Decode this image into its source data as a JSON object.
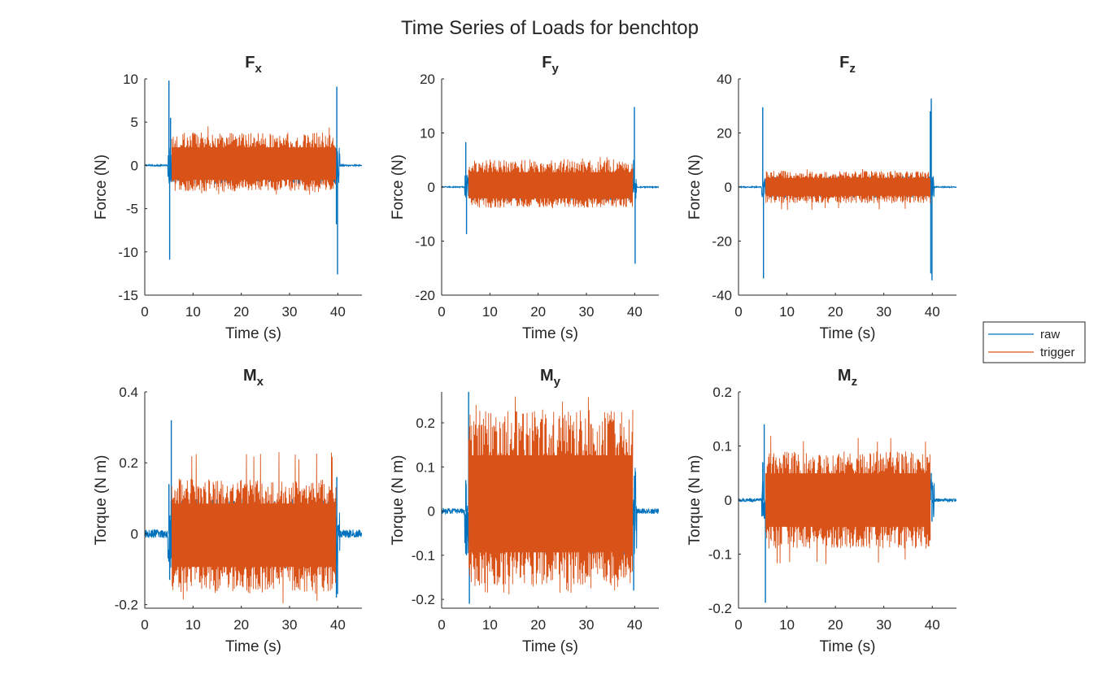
{
  "figure": {
    "title": "Time Series of Loads for benchtop"
  },
  "colors": {
    "raw": "#0072BD",
    "trigger": "#D95319",
    "axis": "#262626",
    "background": "#ffffff"
  },
  "chart_data": [
    {
      "type": "line",
      "title_main": "F",
      "title_sub": "x",
      "xlabel": "Time (s)",
      "ylabel": "Force (N)",
      "xlim": [
        0,
        45
      ],
      "ylim": [
        -15,
        10
      ],
      "xticks": [
        0,
        10,
        20,
        30,
        40
      ],
      "yticks": [
        -15,
        -10,
        -5,
        0,
        5,
        10
      ],
      "series": [
        {
          "name": "raw",
          "quiet_amp": 0.08,
          "active_amp": 2.2,
          "spikes": [
            [
              5.0,
              9.8
            ],
            [
              5.15,
              -10.9
            ],
            [
              5.35,
              5.5
            ],
            [
              39.8,
              9.1
            ],
            [
              39.95,
              -12.6
            ],
            [
              39.7,
              -6.8
            ]
          ]
        },
        {
          "name": "trigger",
          "t_start": 5.6,
          "t_end": 39.6,
          "upper": 3.8,
          "lower": -3.0,
          "peak_max": 4.6,
          "peak_min": -3.4
        }
      ]
    },
    {
      "type": "line",
      "title_main": "F",
      "title_sub": "y",
      "xlabel": "Time (s)",
      "ylabel": "Force (N)",
      "xlim": [
        0,
        45
      ],
      "ylim": [
        -20,
        20
      ],
      "xticks": [
        0,
        10,
        20,
        30,
        40
      ],
      "yticks": [
        -20,
        -10,
        0,
        10,
        20
      ],
      "series": [
        {
          "name": "raw",
          "quiet_amp": 0.1,
          "active_amp": 2.5,
          "spikes": [
            [
              5.0,
              8.3
            ],
            [
              5.15,
              -8.7
            ],
            [
              39.95,
              14.8
            ],
            [
              40.1,
              -14.2
            ],
            [
              39.8,
              5.0
            ]
          ]
        },
        {
          "name": "trigger",
          "t_start": 5.6,
          "t_end": 39.6,
          "upper": 5.0,
          "lower": -3.8,
          "peak_max": 5.6,
          "peak_min": -4.0
        }
      ]
    },
    {
      "type": "line",
      "title_main": "F",
      "title_sub": "z",
      "xlabel": "Time (s)",
      "ylabel": "Force (N)",
      "xlim": [
        0,
        45
      ],
      "ylim": [
        -40,
        40
      ],
      "xticks": [
        0,
        10,
        20,
        30,
        40
      ],
      "yticks": [
        -40,
        -20,
        0,
        20,
        40
      ],
      "series": [
        {
          "name": "raw",
          "quiet_amp": 0.2,
          "active_amp": 4.0,
          "spikes": [
            [
              5.0,
              29.5
            ],
            [
              5.15,
              -33.8
            ],
            [
              39.8,
              32.7
            ],
            [
              39.95,
              -34.5
            ],
            [
              39.6,
              28.0
            ],
            [
              39.7,
              -32.0
            ]
          ]
        },
        {
          "name": "trigger",
          "t_start": 5.6,
          "t_end": 39.6,
          "upper": 6.0,
          "lower": -6.0,
          "peak_max": 7.0,
          "peak_min": -8.5
        }
      ]
    },
    {
      "type": "line",
      "title_main": "M",
      "title_sub": "x",
      "xlabel": "Time (s)",
      "ylabel": "Torque (N m)",
      "xlim": [
        0,
        45
      ],
      "ylim": [
        -0.21,
        0.4
      ],
      "xticks": [
        0,
        10,
        20,
        30,
        40
      ],
      "yticks": [
        -0.2,
        0,
        0.2,
        0.4
      ],
      "series": [
        {
          "name": "raw",
          "quiet_amp": 0.012,
          "active_amp": 0.1,
          "spikes": [
            [
              5.0,
              0.14
            ],
            [
              5.15,
              -0.13
            ],
            [
              5.5,
              0.32
            ],
            [
              39.8,
              0.16
            ],
            [
              39.95,
              -0.17
            ],
            [
              39.7,
              -0.18
            ]
          ]
        },
        {
          "name": "trigger",
          "t_start": 5.6,
          "t_end": 39.6,
          "upper": 0.155,
          "lower": -0.17,
          "peak_max": 0.23,
          "peak_min": -0.2
        }
      ]
    },
    {
      "type": "line",
      "title_main": "M",
      "title_sub": "y",
      "xlabel": "Time (s)",
      "ylabel": "Torque (N m)",
      "xlim": [
        0,
        45
      ],
      "ylim": [
        -0.22,
        0.27
      ],
      "xticks": [
        0,
        10,
        20,
        30,
        40
      ],
      "yticks": [
        -0.2,
        -0.1,
        0,
        0.1,
        0.2
      ],
      "series": [
        {
          "name": "raw",
          "quiet_amp": 0.006,
          "active_amp": 0.1,
          "spikes": [
            [
              5.0,
              0.07
            ],
            [
              5.15,
              -0.1
            ],
            [
              5.6,
              0.27
            ],
            [
              5.75,
              -0.21
            ],
            [
              39.8,
              -0.18
            ],
            [
              39.95,
              0.08
            ]
          ]
        },
        {
          "name": "trigger",
          "t_start": 5.6,
          "t_end": 39.6,
          "upper": 0.23,
          "lower": -0.17,
          "peak_max": 0.26,
          "peak_min": -0.19
        }
      ]
    },
    {
      "type": "line",
      "title_main": "M",
      "title_sub": "z",
      "xlabel": "Time (s)",
      "ylabel": "Torque (N m)",
      "xlim": [
        0,
        45
      ],
      "ylim": [
        -0.2,
        0.2
      ],
      "xticks": [
        0,
        10,
        20,
        30,
        40
      ],
      "yticks": [
        -0.2,
        -0.1,
        0,
        0.1,
        0.2
      ],
      "series": [
        {
          "name": "raw",
          "quiet_amp": 0.003,
          "active_amp": 0.04,
          "spikes": [
            [
              5.0,
              0.07
            ],
            [
              5.3,
              0.14
            ],
            [
              5.55,
              -0.19
            ],
            [
              39.8,
              0.05
            ],
            [
              39.95,
              -0.04
            ]
          ]
        },
        {
          "name": "trigger",
          "t_start": 5.6,
          "t_end": 39.6,
          "upper": 0.09,
          "lower": -0.09,
          "peak_max": 0.12,
          "peak_min": -0.12
        }
      ]
    }
  ],
  "legend": {
    "entries": [
      {
        "label": "raw",
        "series": "raw"
      },
      {
        "label": "trigger",
        "series": "trigger"
      }
    ],
    "placement": "right"
  }
}
